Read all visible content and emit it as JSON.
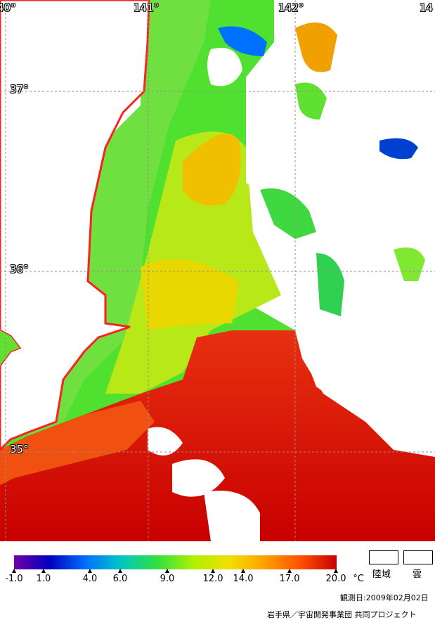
{
  "map": {
    "longitude_labels": [
      "40°",
      "141°",
      "142°",
      "14"
    ],
    "latitude_labels": [
      "37°",
      "36°",
      "35°"
    ]
  },
  "colorbar": {
    "ticks": [
      "-1.0",
      "1.0",
      "4.0",
      "6.0",
      "9.0",
      "12.0",
      "14.0",
      "17.0",
      "20.0"
    ],
    "unit": "°C",
    "colors": [
      "#7000a8",
      "#0000c0",
      "#0070ff",
      "#00c8c0",
      "#30e040",
      "#b0f000",
      "#f0e000",
      "#ffa000",
      "#ff5000",
      "#c80000"
    ]
  },
  "legend": {
    "land_label": "陸域",
    "cloud_label": "雲"
  },
  "footer": {
    "observation_date": "観測日:2009年02月02日",
    "credit": "岩手県／宇宙開発事業団 共同プロジェクト"
  }
}
